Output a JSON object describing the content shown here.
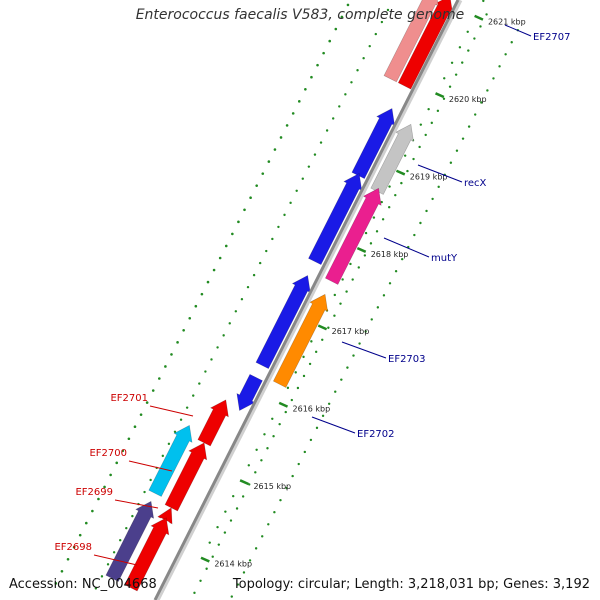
{
  "title": "Enterococcus faecalis V583, complete genome",
  "footer": {
    "accession": "Accession: NC_004668",
    "topology": "Topology: circular; Length: 3,218,031 bp; Genes: 3,192"
  },
  "scale": {
    "ticks": [
      {
        "label": "2621 kbp",
        "kbp": 2621
      },
      {
        "label": "2620 kbp",
        "kbp": 2620
      },
      {
        "label": "2619 kbp",
        "kbp": 2619
      },
      {
        "label": "2618 kbp",
        "kbp": 2618
      },
      {
        "label": "2617 kbp",
        "kbp": 2617
      },
      {
        "label": "2616 kbp",
        "kbp": 2616
      },
      {
        "label": "2615 kbp",
        "kbp": 2615
      },
      {
        "label": "2614 kbp",
        "kbp": 2614
      }
    ]
  },
  "gene_labels": {
    "forward": [
      "EF2707",
      "recX",
      "mutY",
      "EF2703",
      "EF2702"
    ],
    "reverse": [
      "EF2701",
      "EF2700",
      "EF2699",
      "EF2698"
    ]
  },
  "colors": {
    "forward_label": "#00008b",
    "reverse_label": "#cc0000",
    "tick": "#228b22",
    "backbone": "#888888",
    "blue": "#1a1ae6",
    "red": "#ee0000",
    "light_red": "#ef8e8e",
    "gray": "#c4c4c4",
    "pink": "#ea1f8f",
    "orange": "#ff8a00",
    "cyan": "#00c0ee",
    "purple": "#4b3f8c"
  }
}
